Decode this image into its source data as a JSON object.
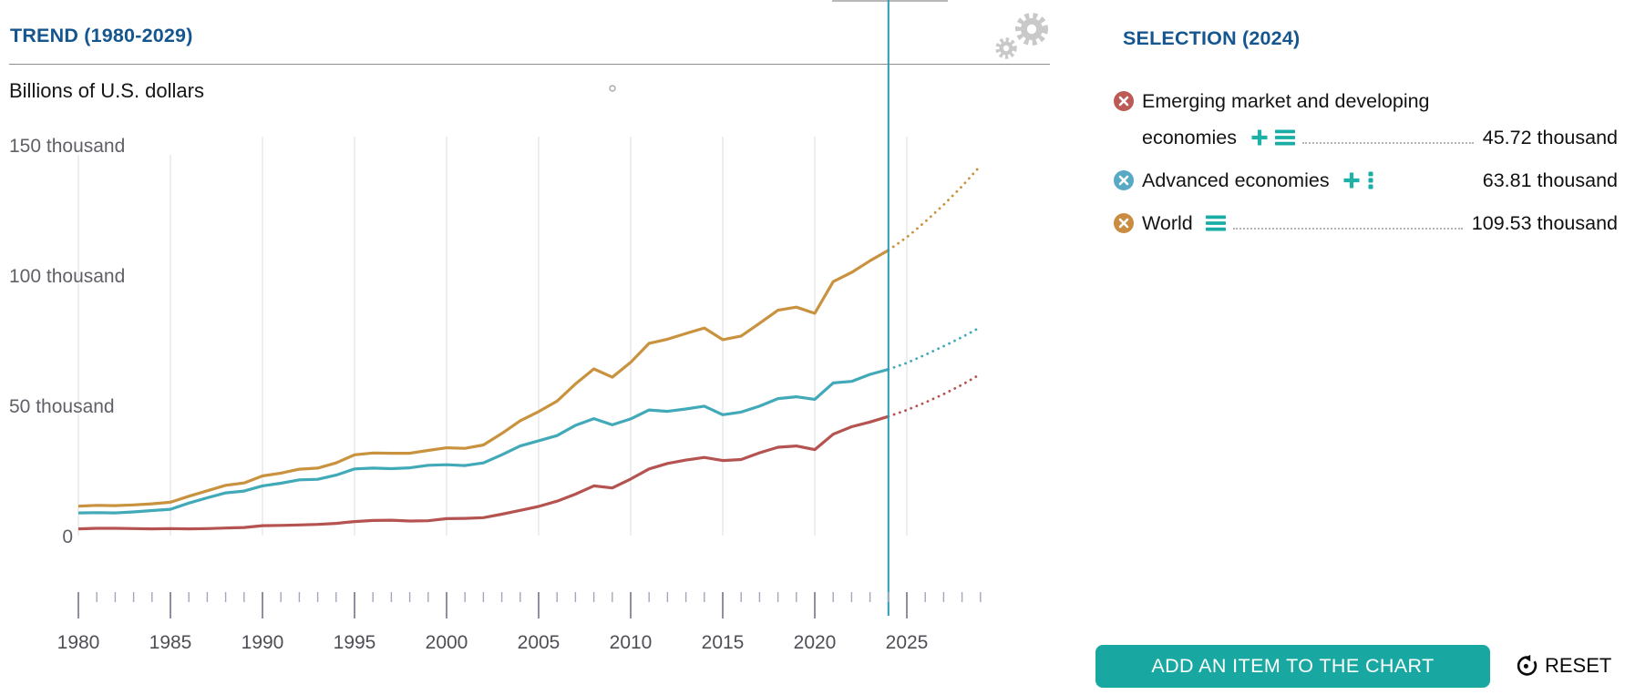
{
  "header": {
    "trend_title": "TREND (1980-2029)"
  },
  "selection_panel": {
    "title": "SELECTION (2024)",
    "items": [
      {
        "label_lines": [
          "Emerging market and developing",
          "economies"
        ],
        "full_label": "Emerging market and developing economies",
        "marker_color": "#bc5a55",
        "icons": [
          "plus",
          "list"
        ],
        "value": "45.72 thousand"
      },
      {
        "label_lines": [
          "Advanced economies"
        ],
        "full_label": "Advanced economies",
        "marker_color": "#58a9c5",
        "icons": [
          "plus",
          "vdots"
        ],
        "value": "63.81 thousand"
      },
      {
        "label_lines": [
          "World"
        ],
        "full_label": "World",
        "marker_color": "#ca8c41",
        "icons": [
          "list"
        ],
        "value": "109.53 thousand"
      }
    ],
    "add_button_label": "ADD AN ITEM TO THE CHART",
    "reset_label": "RESET"
  },
  "colors": {
    "header_blue": "#15568f",
    "accent_teal": "#18a8a1",
    "selection_line": "#2b9cb3"
  },
  "chart_data": {
    "type": "line",
    "title": "TREND (1980-2029)",
    "ylabel": "Billions of U.S. dollars",
    "xlabel": "",
    "ylim": [
      0,
      150
    ],
    "x_range": [
      1980,
      2029
    ],
    "selection_year": 2024,
    "projection_start_year": 2024,
    "grid": "vertical-only",
    "legend_position": "right-panel",
    "y_ticks": [
      {
        "value": 0,
        "label": "0"
      },
      {
        "value": 50,
        "label": "50 thousand"
      },
      {
        "value": 100,
        "label": "100 thousand"
      },
      {
        "value": 150,
        "label": "150 thousand"
      }
    ],
    "x_tick_label_years": [
      1980,
      1985,
      1990,
      1995,
      2000,
      2005,
      2010,
      2015,
      2020,
      2025
    ],
    "gridline_years": [
      1980,
      1985,
      1990,
      1995,
      2000,
      2005,
      2010,
      2015,
      2020,
      2025
    ],
    "x": [
      1980,
      1981,
      1982,
      1983,
      1984,
      1985,
      1986,
      1987,
      1988,
      1989,
      1990,
      1991,
      1992,
      1993,
      1994,
      1995,
      1996,
      1997,
      1998,
      1999,
      2000,
      2001,
      2002,
      2003,
      2004,
      2005,
      2006,
      2007,
      2008,
      2009,
      2010,
      2011,
      2012,
      2013,
      2014,
      2015,
      2016,
      2017,
      2018,
      2019,
      2020,
      2021,
      2022,
      2023,
      2024,
      2025,
      2026,
      2027,
      2028,
      2029
    ],
    "series": [
      {
        "name": "World",
        "color": "#c9923e",
        "value_2024": 109.53,
        "values": [
          11.3,
          11.6,
          11.5,
          11.8,
          12.2,
          12.8,
          15.1,
          17.2,
          19.3,
          20.2,
          22.9,
          24.0,
          25.5,
          25.9,
          27.9,
          31.0,
          31.7,
          31.6,
          31.6,
          32.7,
          33.7,
          33.5,
          34.8,
          39.2,
          44.1,
          47.6,
          51.6,
          58.2,
          64.0,
          60.8,
          66.5,
          73.8,
          75.4,
          77.6,
          79.7,
          75.2,
          76.6,
          81.5,
          86.5,
          87.7,
          85.3,
          97.5,
          101.0,
          105.5,
          109.53,
          114.5,
          120.5,
          127.0,
          134.1,
          142.0
        ]
      },
      {
        "name": "Advanced economies",
        "color": "#41a9b8",
        "value_2024": 63.81,
        "values": [
          8.7,
          8.8,
          8.7,
          9.1,
          9.6,
          10.1,
          12.5,
          14.5,
          16.4,
          17.1,
          19.1,
          20.1,
          21.4,
          21.6,
          23.2,
          25.6,
          25.9,
          25.7,
          26.0,
          27.0,
          27.2,
          26.9,
          27.9,
          31.0,
          34.4,
          36.4,
          38.4,
          42.3,
          44.9,
          42.5,
          44.8,
          48.2,
          47.7,
          48.6,
          49.7,
          46.4,
          47.4,
          49.7,
          52.6,
          53.3,
          52.3,
          58.6,
          59.2,
          61.9,
          63.81,
          66.3,
          69.4,
          72.7,
          76.2,
          80.0
        ]
      },
      {
        "name": "Emerging market and developing economies",
        "color": "#b55350",
        "value_2024": 45.72,
        "values": [
          2.6,
          2.8,
          2.8,
          2.7,
          2.6,
          2.7,
          2.6,
          2.7,
          2.9,
          3.1,
          3.8,
          3.9,
          4.1,
          4.3,
          4.7,
          5.4,
          5.8,
          5.9,
          5.6,
          5.7,
          6.5,
          6.6,
          6.9,
          8.2,
          9.7,
          11.2,
          13.2,
          15.9,
          19.1,
          18.3,
          21.7,
          25.6,
          27.7,
          29.0,
          30.0,
          28.8,
          29.2,
          31.8,
          33.9,
          34.4,
          33.0,
          38.9,
          41.8,
          43.6,
          45.72,
          48.2,
          51.1,
          54.3,
          57.9,
          62.0
        ]
      }
    ]
  }
}
